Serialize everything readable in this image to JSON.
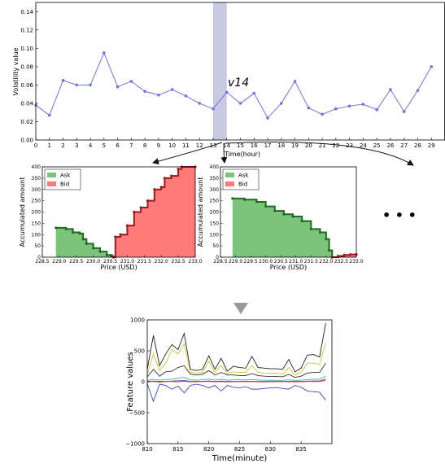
{
  "colors": {
    "volatility_line": "#6f74e0",
    "highlight": "#c9c9e4",
    "ask_fill": "#7cc47c",
    "ask_edge": "#1f6b1f",
    "bid_fill": "#ff7a7a",
    "bid_edge": "#9e1a1a",
    "arrow": "#888888"
  },
  "annotation_label": "v14",
  "ellipsis": "• • •",
  "chart_data": [
    {
      "type": "line",
      "xlabel": "Time(hour)",
      "ylabel": "Volatility value",
      "xlim": [
        0,
        30
      ],
      "ylim": [
        0,
        0.15
      ],
      "xticks": [
        "0",
        "1",
        "2",
        "3",
        "4",
        "5",
        "6",
        "7",
        "8",
        "9",
        "10",
        "11",
        "12",
        "13",
        "14",
        "15",
        "16",
        "17",
        "18",
        "19",
        "20",
        "21",
        "22",
        "23",
        "24",
        "25",
        "26",
        "27",
        "28",
        "29"
      ],
      "yticks": [
        "0.00",
        "0.02",
        "0.04",
        "0.06",
        "0.08",
        "0.10",
        "0.12",
        "0.14"
      ],
      "highlight_range": [
        13,
        14
      ],
      "x": [
        0,
        1,
        2,
        3,
        4,
        5,
        6,
        7,
        8,
        9,
        10,
        11,
        12,
        13,
        14,
        15,
        16,
        17,
        18,
        19,
        20,
        21,
        22,
        23,
        24,
        25,
        26,
        27,
        28,
        29
      ],
      "values": [
        0.038,
        0.027,
        0.065,
        0.06,
        0.06,
        0.095,
        0.058,
        0.064,
        0.053,
        0.049,
        0.055,
        0.048,
        0.04,
        0.034,
        0.052,
        0.04,
        0.051,
        0.024,
        0.04,
        0.064,
        0.035,
        0.028,
        0.034,
        0.037,
        0.039,
        0.033,
        0.055,
        0.031,
        0.054,
        0.08
      ]
    },
    {
      "type": "area",
      "xlabel": "Price (USD)",
      "ylabel": "Accumulated amount",
      "xlim": [
        228.5,
        233.0
      ],
      "ylim": [
        0,
        400
      ],
      "xticks": [
        "228.5",
        "229.0",
        "229.5",
        "230.0",
        "230.5",
        "231.0",
        "231.5",
        "232.0",
        "232.5",
        "233.0"
      ],
      "yticks": [
        "0",
        "50",
        "100",
        "150",
        "200",
        "250",
        "300",
        "350",
        "400"
      ],
      "legend": [
        "Ask",
        "Bid"
      ],
      "series": [
        {
          "name": "Ask",
          "x": [
            228.9,
            229.2,
            229.4,
            229.6,
            229.7,
            229.8,
            230.0,
            230.2,
            230.4,
            230.55,
            230.6
          ],
          "values": [
            130,
            125,
            110,
            105,
            80,
            60,
            40,
            25,
            10,
            4,
            0
          ]
        },
        {
          "name": "Bid",
          "x": [
            230.6,
            230.65,
            230.8,
            231.0,
            231.2,
            231.4,
            231.6,
            231.8,
            232.0,
            232.1,
            232.3,
            232.5,
            232.6,
            233.0
          ],
          "values": [
            0,
            90,
            100,
            140,
            200,
            220,
            250,
            300,
            310,
            350,
            360,
            390,
            400,
            400
          ]
        }
      ]
    },
    {
      "type": "area",
      "xlabel": "Price (USD)",
      "ylabel": "Accumulated amount",
      "xlim": [
        228.5,
        233.0
      ],
      "ylim": [
        0,
        400
      ],
      "xticks": [
        "228.5",
        "229.0",
        "229.5",
        "230.0",
        "230.5",
        "231.0",
        "231.5",
        "232.0",
        "232.5",
        "233.0"
      ],
      "yticks": [
        "0",
        "50",
        "100",
        "150",
        "200",
        "250",
        "300",
        "350",
        "400"
      ],
      "legend": [
        "Ask",
        "Bid"
      ],
      "series": [
        {
          "name": "Ask",
          "x": [
            228.9,
            229.3,
            229.7,
            230.0,
            230.3,
            230.6,
            230.9,
            231.2,
            231.5,
            231.8,
            232.0,
            232.1,
            232.2
          ],
          "values": [
            260,
            255,
            245,
            225,
            205,
            190,
            180,
            160,
            125,
            110,
            80,
            30,
            0
          ]
        },
        {
          "name": "Bid",
          "x": [
            232.2,
            232.4,
            232.6,
            232.8,
            233.0
          ],
          "values": [
            0,
            5,
            10,
            12,
            12
          ]
        }
      ]
    },
    {
      "type": "line",
      "xlabel": "Time(minute)",
      "ylabel": "Feature values",
      "xlim": [
        810,
        840
      ],
      "ylim": [
        -1000,
        1000
      ],
      "xticks": [
        "810",
        "815",
        "820",
        "825",
        "830",
        "835"
      ],
      "yticks": [
        "−1000",
        "−500",
        "0",
        "500",
        "1000"
      ],
      "x": [
        810,
        811,
        812,
        813,
        814,
        815,
        816,
        817,
        818,
        819,
        820,
        821,
        822,
        823,
        824,
        825,
        826,
        827,
        828,
        829,
        830,
        831,
        832,
        833,
        834,
        835,
        836,
        837,
        838,
        839
      ],
      "series": [
        {
          "color": "#222222",
          "values": [
            200,
            750,
            260,
            450,
            600,
            520,
            780,
            200,
            180,
            200,
            420,
            200,
            380,
            170,
            250,
            230,
            220,
            410,
            230,
            220,
            210,
            210,
            200,
            360,
            160,
            220,
            430,
            440,
            400,
            950
          ]
        },
        {
          "color": "#c8c832",
          "values": [
            120,
            450,
            180,
            300,
            520,
            450,
            610,
            150,
            140,
            150,
            330,
            150,
            260,
            130,
            160,
            150,
            150,
            260,
            150,
            140,
            135,
            135,
            120,
            230,
            110,
            150,
            300,
            300,
            280,
            630
          ]
        },
        {
          "color": "#333333",
          "values": [
            80,
            200,
            90,
            160,
            170,
            230,
            260,
            120,
            110,
            120,
            180,
            110,
            150,
            110,
            110,
            100,
            100,
            130,
            100,
            90,
            85,
            85,
            80,
            120,
            70,
            90,
            140,
            150,
            150,
            300
          ]
        },
        {
          "color": "#4aa8a8",
          "values": [
            20,
            40,
            25,
            35,
            40,
            60,
            70,
            30,
            25,
            30,
            45,
            25,
            40,
            25,
            30,
            30,
            28,
            35,
            28,
            25,
            22,
            22,
            22,
            30,
            20,
            25,
            35,
            40,
            40,
            90
          ]
        },
        {
          "color": "#6a3aa0",
          "values": [
            5,
            10,
            5,
            8,
            10,
            15,
            18,
            8,
            5,
            8,
            12,
            6,
            10,
            6,
            6,
            6,
            5,
            8,
            6,
            5,
            5,
            5,
            5,
            8,
            5,
            6,
            10,
            12,
            12,
            40
          ]
        },
        {
          "color": "#d04040",
          "values": [
            0,
            5,
            -5,
            3,
            5,
            -3,
            8,
            -2,
            0,
            2,
            5,
            0,
            3,
            -2,
            0,
            2,
            0,
            3,
            0,
            -2,
            0,
            0,
            2,
            0,
            -3,
            0,
            5,
            3,
            5,
            20
          ]
        },
        {
          "color": "#3a4ac8",
          "values": [
            -30,
            -320,
            -40,
            -60,
            -120,
            -70,
            -180,
            -60,
            -40,
            -60,
            -100,
            -60,
            -150,
            -60,
            -90,
            -100,
            -80,
            -120,
            -120,
            -110,
            -100,
            -95,
            -110,
            -120,
            -60,
            -90,
            -150,
            -160,
            -170,
            -300
          ]
        }
      ]
    }
  ]
}
